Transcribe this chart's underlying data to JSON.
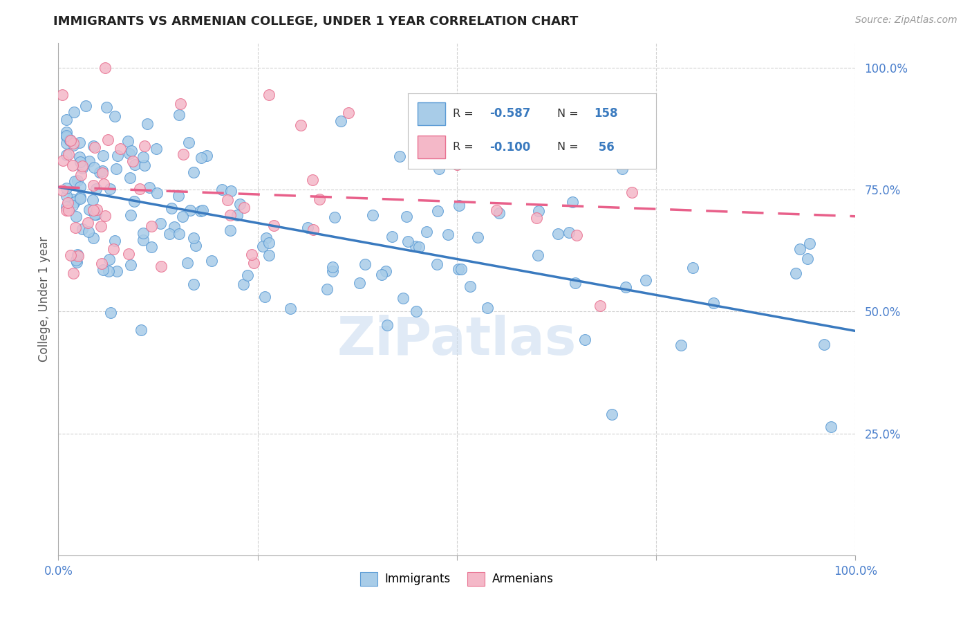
{
  "title": "IMMIGRANTS VS ARMENIAN COLLEGE, UNDER 1 YEAR CORRELATION CHART",
  "source": "Source: ZipAtlas.com",
  "ylabel": "College, Under 1 year",
  "xlim": [
    0.0,
    1.0
  ],
  "ylim": [
    0.0,
    1.05
  ],
  "x_tick_positions": [
    0.0,
    0.25,
    0.5,
    0.75,
    1.0
  ],
  "x_tick_labels": [
    "0.0%",
    "",
    "",
    "",
    "100.0%"
  ],
  "y_tick_positions": [
    0.25,
    0.5,
    0.75,
    1.0
  ],
  "y_tick_labels": [
    "25.0%",
    "50.0%",
    "75.0%",
    "100.0%"
  ],
  "immigrants_fill_color": "#a8cce8",
  "immigrants_edge_color": "#5b9bd5",
  "armenians_fill_color": "#f4b8c8",
  "armenians_edge_color": "#e87090",
  "immigrants_line_color": "#3a7abf",
  "armenians_line_color": "#e8608a",
  "R_immigrants": -0.587,
  "N_immigrants": 158,
  "R_armenians": -0.1,
  "N_armenians": 56,
  "background_color": "#ffffff",
  "grid_color": "#cccccc",
  "tick_color": "#4a7fcc",
  "ylabel_color": "#555555",
  "title_color": "#222222",
  "source_color": "#999999",
  "watermark_color": "#ccddf0",
  "legend_imm_label": "R = -0.587   N = 158",
  "legend_arm_label": "R = -0.100   N =  56",
  "bottom_legend_imm": "Immigrants",
  "bottom_legend_arm": "Armenians",
  "imm_trend_start_x": 0.0,
  "imm_trend_start_y": 0.755,
  "imm_trend_end_x": 1.0,
  "imm_trend_end_y": 0.46,
  "arm_trend_start_x": 0.0,
  "arm_trend_start_y": 0.755,
  "arm_trend_end_x": 1.0,
  "arm_trend_end_y": 0.695
}
